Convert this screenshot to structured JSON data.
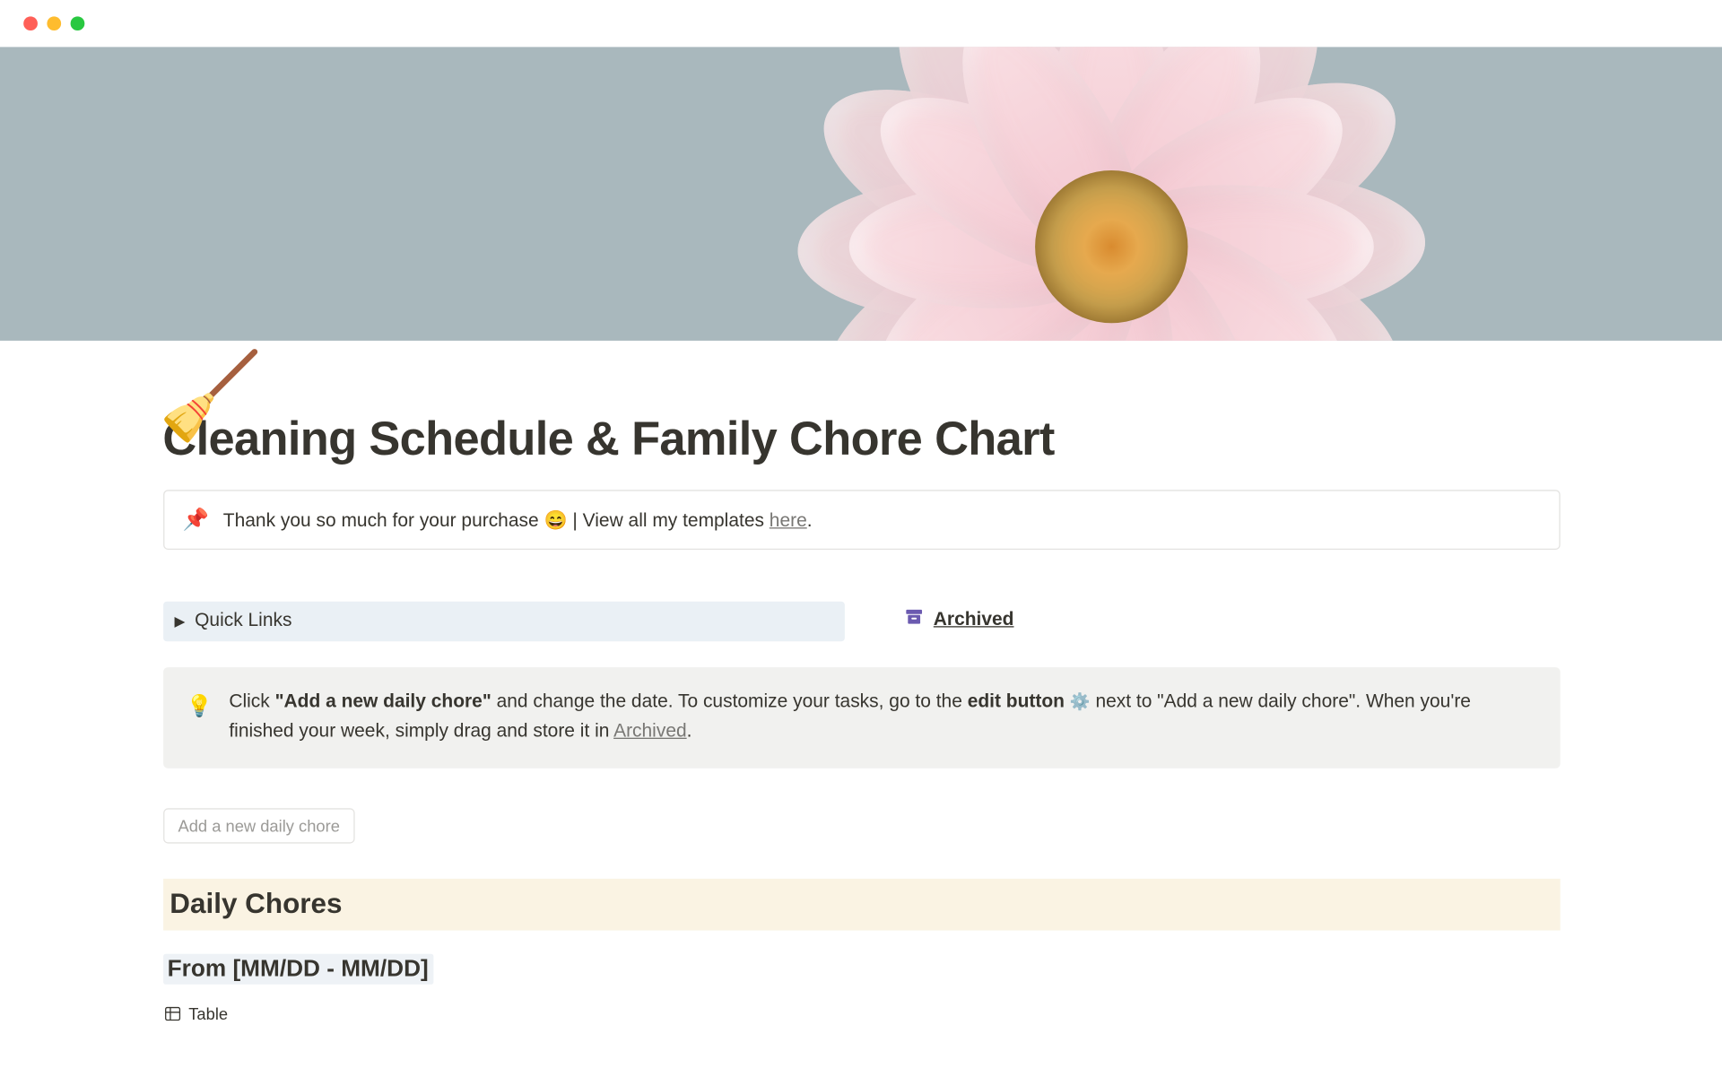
{
  "window": {
    "traffic_colors": [
      "#ff5f57",
      "#febc2e",
      "#28c840"
    ]
  },
  "cover": {
    "background_color": "#a9b8bd",
    "flower": {
      "petal_color_light": "#f9e0e4",
      "petal_color_mid": "#f6d2d9",
      "petal_color_dark": "#f2c4cf",
      "center_gradient": [
        "#d98b2f",
        "#e6a94e",
        "#caa24e",
        "#b98f3e"
      ],
      "stem_color": "#8fb256",
      "petal_count_back": 14,
      "petal_count_front": 12
    }
  },
  "page": {
    "icon": "🧹",
    "title": "Cleaning Schedule & Family Chore Chart"
  },
  "pin_callout": {
    "emoji": "📌",
    "text_before": "Thank you so much for your purchase ",
    "smile": "😄",
    "sep": " | View all my templates ",
    "link": "here",
    "after": "."
  },
  "quick_links": {
    "label": "Quick Links"
  },
  "archived": {
    "label": "Archived",
    "icon_color": "#6b5ab0"
  },
  "tip": {
    "bulb": "💡",
    "t1": "Click ",
    "b1": "\"Add a new daily chore\"",
    "t2": " and change the date. To customize your tasks, go to the",
    "b2": " edit button ",
    "gear": "⚙️",
    "t3": " next to \"Add a new daily chore\". When you're finished your week, simply drag and store it in ",
    "link": "Archived",
    "t4": "."
  },
  "add_button": {
    "label": "Add a new daily chore"
  },
  "section": {
    "title": "Daily Chores",
    "banner_bg": "#faf3e3"
  },
  "date_range": {
    "text": "From [MM/DD - MM/DD]",
    "highlight_bg": "#eef2f6"
  },
  "table_view": {
    "label": "Table"
  }
}
